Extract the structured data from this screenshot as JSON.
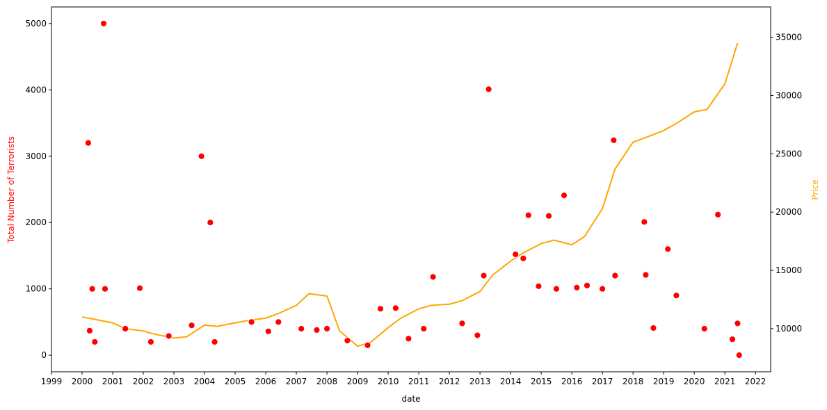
{
  "chart_data": {
    "type": "scatter+line",
    "xlabel": "date",
    "ylabel_left": "Total Number of Terrorists",
    "ylabel_right": "Price",
    "x_range": [
      "1999-01-01",
      "2022-07-01"
    ],
    "ylim_left": [
      -250,
      5250
    ],
    "ylim_right": [
      6300,
      37600
    ],
    "x_ticks": [
      "1999",
      "2000",
      "2001",
      "2002",
      "2003",
      "2004",
      "2005",
      "2006",
      "2007",
      "2008",
      "2009",
      "2010",
      "2011",
      "2012",
      "2013",
      "2014",
      "2015",
      "2016",
      "2017",
      "2018",
      "2019",
      "2020",
      "2021",
      "2022"
    ],
    "y_ticks_left": [
      0,
      1000,
      2000,
      3000,
      4000,
      5000
    ],
    "y_ticks_right": [
      10000,
      15000,
      20000,
      25000,
      30000,
      35000
    ],
    "colors": {
      "terrorists": "#ff0000",
      "terrorists_small": "#ffb3b3",
      "price": "#ffa500",
      "left_label": "#ff0000",
      "right_label": "#ffa500"
    },
    "grid": false,
    "terrorists_series": {
      "x": [
        "2000-03-15",
        "2000-09-15",
        "2000-05-01",
        "2000-10-01",
        "2000-04-01",
        "2001-11-20",
        "2003-11-25",
        "2004-03-10",
        "2013-04-15",
        "2017-05-15",
        "2015-10-01",
        "2015-04-01",
        "2014-08-01",
        "2014-06-01",
        "2018-05-15",
        "2019-02-20",
        "2020-10-10",
        "2013-02-15",
        "2011-06-20",
        "2017-06-01",
        "2018-06-01",
        "2014-03-01",
        "2016-07-01",
        "2007-03-01",
        "2010-04-01",
        "2009-10-01",
        "2018-09-01",
        "2012-06-01",
        "2008-01-01",
        "2006-06-01",
        "2005-07-15",
        "2001-06-01",
        "2003-08-01",
        "2008-09-01",
        "2020-05-01",
        "2019-06-01",
        "2021-06-01",
        "2017-01-01",
        "2016-03-01",
        "2015-07-01",
        "2014-12-01",
        "2012-12-01",
        "2011-03-01",
        "2010-09-01",
        "2009-05-01",
        "2007-09-01",
        "2002-04-01",
        "2000-06-01",
        "2002-11-01",
        "2004-05-01",
        "2006-02-01",
        "2021-04-01",
        "2021-06-20"
      ],
      "y": [
        3200,
        5000,
        1000,
        1000,
        370,
        1010,
        3000,
        2000,
        4010,
        3240,
        2410,
        2100,
        2110,
        1460,
        2010,
        1600,
        2120,
        1200,
        1180,
        1200,
        1210,
        1520,
        1050,
        400,
        710,
        700,
        410,
        480,
        400,
        500,
        500,
        400,
        450,
        220,
        400,
        900,
        480,
        1000,
        1020,
        1000,
        1040,
        300,
        400,
        250,
        150,
        380,
        200,
        200,
        290,
        200,
        360,
        240,
        0
      ]
    },
    "price_series": {
      "x": [
        "2000-01-01",
        "2000-06-01",
        "2001-01-01",
        "2001-06-01",
        "2002-01-01",
        "2002-06-01",
        "2003-01-01",
        "2003-06-01",
        "2004-01-01",
        "2004-06-01",
        "2005-01-01",
        "2005-06-01",
        "2006-01-01",
        "2006-06-01",
        "2007-01-01",
        "2007-06-01",
        "2008-01-01",
        "2008-06-01",
        "2009-01-01",
        "2009-06-01",
        "2010-01-01",
        "2010-06-01",
        "2011-01-01",
        "2011-06-01",
        "2012-01-01",
        "2012-06-01",
        "2013-01-01",
        "2013-06-01",
        "2014-01-01",
        "2014-06-01",
        "2015-01-01",
        "2015-06-01",
        "2016-01-01",
        "2016-06-01",
        "2017-01-01",
        "2017-06-01",
        "2018-01-01",
        "2018-06-01",
        "2019-01-01",
        "2019-06-01",
        "2020-01-01",
        "2020-06-01",
        "2021-01-01",
        "2021-06-01"
      ],
      "y": [
        11000,
        10800,
        10500,
        10000,
        9800,
        9500,
        9200,
        9300,
        10300,
        10200,
        10500,
        10700,
        10900,
        11300,
        12000,
        13000,
        12800,
        9800,
        8500,
        8800,
        10100,
        10900,
        11700,
        12000,
        12100,
        12400,
        13200,
        14600,
        15800,
        16500,
        17300,
        17600,
        17200,
        17900,
        20300,
        23700,
        26000,
        26400,
        27000,
        27600,
        28600,
        28800,
        31000,
        34500
      ]
    }
  }
}
